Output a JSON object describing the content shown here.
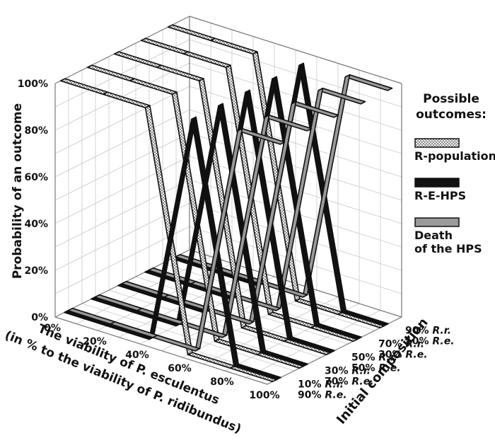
{
  "chart_data": {
    "type": "line",
    "variant": "3d-ribbon",
    "grid": true,
    "legend_placement": "right",
    "z_axis_label": "Probability of an outcome",
    "x_axis_label_line1": "The viability of P. esculentus",
    "x_axis_label_line2": "(in % to the viability of P. ridibundus)",
    "y_axis_label": "Initial composition",
    "z_ticks": [
      "0%",
      "20%",
      "40%",
      "60%",
      "80%",
      "100%"
    ],
    "z_range": [
      0,
      100
    ],
    "x": [
      0,
      20,
      40,
      60,
      80,
      100
    ],
    "x_ticks": [
      "0%",
      "20%",
      "40%",
      "60%",
      "80%",
      "100%"
    ],
    "compositions": [
      {
        "rr": "10% R.r.",
        "re": "90% R.e."
      },
      {
        "rr": "30% R.r.",
        "re": "70% R.e."
      },
      {
        "rr": "50% R.r.",
        "re": "50% R.e."
      },
      {
        "rr": "70% R.r.",
        "re": "30% R.e."
      },
      {
        "rr": "90% R.r.",
        "re": "10% R.e."
      }
    ],
    "legend_title": "Possible outcomes:",
    "outcomes": [
      {
        "name": "R-population",
        "color": "#d6d6d6",
        "pattern": "dotted"
      },
      {
        "name": "R-E-HPS",
        "color": "#111111",
        "pattern": "solid"
      },
      {
        "name": "Death of the HPS",
        "color": "#9a9a9a",
        "pattern": "solid"
      }
    ],
    "series": [
      {
        "composition": "10% R.r. / 90% R.e.",
        "outcome": "R-population",
        "values": [
          100,
          100,
          100,
          0,
          0,
          0
        ]
      },
      {
        "composition": "10% R.r. / 90% R.e.",
        "outcome": "R-E-HPS",
        "values": [
          0,
          0,
          0,
          100,
          0,
          0
        ]
      },
      {
        "composition": "10% R.r. / 90% R.e.",
        "outcome": "Death of the HPS",
        "values": [
          0,
          0,
          0,
          0,
          100,
          100
        ]
      },
      {
        "composition": "30% R.r. / 70% R.e.",
        "outcome": "R-population",
        "values": [
          100,
          100,
          100,
          0,
          0,
          0
        ]
      },
      {
        "composition": "30% R.r. / 70% R.e.",
        "outcome": "R-E-HPS",
        "values": [
          0,
          0,
          0,
          100,
          0,
          0
        ]
      },
      {
        "composition": "30% R.r. / 70% R.e.",
        "outcome": "Death of the HPS",
        "values": [
          0,
          0,
          0,
          0,
          100,
          100
        ]
      },
      {
        "composition": "50% R.r. / 50% R.e.",
        "outcome": "R-population",
        "values": [
          100,
          100,
          100,
          0,
          0,
          0
        ]
      },
      {
        "composition": "50% R.r. / 50% R.e.",
        "outcome": "R-E-HPS",
        "values": [
          0,
          0,
          0,
          100,
          0,
          0
        ]
      },
      {
        "composition": "50% R.r. / 50% R.e.",
        "outcome": "Death of the HPS",
        "values": [
          0,
          0,
          0,
          0,
          100,
          100
        ]
      },
      {
        "composition": "70% R.r. / 30% R.e.",
        "outcome": "R-population",
        "values": [
          100,
          100,
          100,
          0,
          0,
          0
        ]
      },
      {
        "composition": "70% R.r. / 30% R.e.",
        "outcome": "R-E-HPS",
        "values": [
          0,
          0,
          0,
          100,
          0,
          0
        ]
      },
      {
        "composition": "70% R.r. / 30% R.e.",
        "outcome": "Death of the HPS",
        "values": [
          0,
          0,
          0,
          0,
          100,
          100
        ]
      },
      {
        "composition": "90% R.r. / 10% R.e.",
        "outcome": "R-population",
        "values": [
          100,
          100,
          100,
          0,
          0,
          0
        ]
      },
      {
        "composition": "90% R.r. / 10% R.e.",
        "outcome": "R-E-HPS",
        "values": [
          0,
          0,
          0,
          100,
          0,
          0
        ]
      },
      {
        "composition": "90% R.r. / 10% R.e.",
        "outcome": "Death of the HPS",
        "values": [
          0,
          0,
          0,
          0,
          100,
          100
        ]
      }
    ]
  }
}
